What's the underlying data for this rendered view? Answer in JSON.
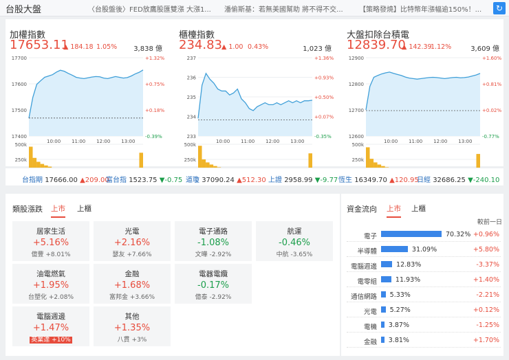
{
  "header": {
    "title": "台股大盤",
    "tickers": [
      "〈台股盤後〉FED放鷹股匯雙漲 大漲1...",
      "潘偷斯基：若無美國幫助 將不得不交...",
      "【策略發燒】比特幣年漲幅逾150%！..."
    ]
  },
  "indices": [
    {
      "name": "加權指數",
      "value": "17653.11",
      "change": "▲ 184.18",
      "change_pct": "1.05%",
      "volume": "3,838 億",
      "y_labels": [
        "17700",
        "17600",
        "17500",
        "17400"
      ],
      "pct_labels": [
        "+1.32%",
        "+0.75%",
        "+0.18%",
        "-0.39%"
      ],
      "vol_labels": [
        "500k",
        "250k",
        "0"
      ],
      "time_labels": [
        "10:00",
        "11:00",
        "12:00",
        "13:00"
      ],
      "ylim": [
        17400,
        17700
      ],
      "prev_close": 17468.93,
      "series": [
        17468,
        17548,
        17598,
        17612,
        17625,
        17630,
        17635,
        17645,
        17652,
        17648,
        17640,
        17633,
        17625,
        17622,
        17620,
        17623,
        17626,
        17628,
        17627,
        17622,
        17620,
        17624,
        17628,
        17625,
        17622,
        17624,
        17630,
        17638,
        17644,
        17653
      ],
      "volumes": [
        0.92,
        0.55,
        0.42,
        0.35,
        0.3,
        0.26,
        0.22,
        0.2,
        0.18,
        0.17,
        0.16,
        0.15,
        0.15,
        0.14,
        0.14,
        0.13,
        0.13,
        0.13,
        0.12,
        0.12,
        0.12,
        0.12,
        0.12,
        0.11,
        0.12,
        0.12,
        0.13,
        0.14,
        0.16,
        0.72
      ]
    },
    {
      "name": "櫃檯指數",
      "value": "234.83",
      "change": "▲ 1.00",
      "change_pct": "0.43%",
      "volume": "1,023 億",
      "y_labels": [
        "237",
        "236",
        "235",
        "234",
        "233"
      ],
      "pct_labels": [
        "+1.36%",
        "+0.93%",
        "+0.50%",
        "+0.07%",
        "-0.35%"
      ],
      "vol_labels": [
        "500k",
        "250k",
        "0"
      ],
      "time_labels": [
        "10:00",
        "11:00",
        "12:00",
        "13:00"
      ],
      "ylim": [
        233,
        237
      ],
      "prev_close": 233.83,
      "series": [
        233.9,
        235.6,
        236.2,
        235.9,
        235.7,
        235.4,
        235.3,
        235.3,
        235.1,
        235.2,
        235.4,
        234.9,
        234.7,
        234.4,
        234.3,
        234.5,
        234.6,
        234.7,
        234.6,
        234.6,
        234.7,
        234.6,
        234.7,
        234.8,
        234.7,
        234.8,
        234.7,
        234.8,
        234.8,
        234.83
      ],
      "volumes": [
        0.95,
        0.5,
        0.4,
        0.33,
        0.28,
        0.24,
        0.21,
        0.19,
        0.18,
        0.17,
        0.16,
        0.15,
        0.15,
        0.14,
        0.14,
        0.13,
        0.13,
        0.13,
        0.12,
        0.12,
        0.12,
        0.12,
        0.12,
        0.12,
        0.12,
        0.12,
        0.13,
        0.13,
        0.15,
        0.7
      ]
    },
    {
      "name": "大盤扣除台積電",
      "value": "12839.70",
      "change": "▲ 142.39",
      "change_pct": "1.12%",
      "volume": "3,609 億",
      "y_labels": [
        "12900",
        "12800",
        "12700",
        "12600"
      ],
      "pct_labels": [
        "+1.60%",
        "+0.81%",
        "+0.02%",
        "-0.77%"
      ],
      "vol_labels": [
        "500k",
        "250k",
        "0"
      ],
      "time_labels": [
        "10:00",
        "11:00",
        "12:00",
        "13:00"
      ],
      "ylim": [
        12600,
        12900
      ],
      "prev_close": 12697.31,
      "series": [
        12700,
        12790,
        12825,
        12832,
        12838,
        12842,
        12845,
        12840,
        12836,
        12832,
        12826,
        12822,
        12820,
        12818,
        12820,
        12822,
        12824,
        12825,
        12824,
        12822,
        12820,
        12822,
        12824,
        12825,
        12823,
        12824,
        12826,
        12830,
        12834,
        12839.7
      ],
      "volumes": [
        0.9,
        0.52,
        0.4,
        0.33,
        0.28,
        0.24,
        0.21,
        0.19,
        0.18,
        0.17,
        0.16,
        0.15,
        0.15,
        0.14,
        0.14,
        0.13,
        0.13,
        0.13,
        0.12,
        0.12,
        0.12,
        0.12,
        0.12,
        0.11,
        0.12,
        0.12,
        0.13,
        0.14,
        0.16,
        0.68
      ]
    }
  ],
  "global_strip": [
    {
      "name": "台指期",
      "value": "17666.00",
      "change": "▲209.00",
      "dir": "up"
    },
    {
      "name": "富台指",
      "value": "1523.75",
      "change": "▼-0.75",
      "dir": "dn"
    },
    {
      "name": "道瓊",
      "value": "37090.24",
      "change": "▲512.30",
      "dir": "up"
    },
    {
      "name": "上證",
      "value": "2958.99",
      "change": "▼-9.77",
      "dir": "dn"
    },
    {
      "name": "恆生",
      "value": "16349.70",
      "change": "▲120.95",
      "dir": "up"
    },
    {
      "name": "日經",
      "value": "32686.25",
      "change": "▼-240.10",
      "dir": "dn"
    }
  ],
  "sectors": {
    "title": "類股漲跌",
    "tabs": [
      "上市",
      "上櫃"
    ],
    "cards": [
      {
        "name": "居家生活",
        "pct": "+5.16%",
        "stock": "億豐",
        "stock_pct": "+8.01%",
        "dir": "up",
        "badge": false
      },
      {
        "name": "光電",
        "pct": "+2.16%",
        "stock": "瑟友",
        "stock_pct": "+7.66%",
        "dir": "up",
        "badge": false
      },
      {
        "name": "電子通路",
        "pct": "-1.08%",
        "stock": "文曄",
        "stock_pct": "-2.92%",
        "dir": "dn",
        "badge": false
      },
      {
        "name": "航運",
        "pct": "-0.46%",
        "stock": "中航",
        "stock_pct": "-3.65%",
        "dir": "dn",
        "badge": false
      },
      {
        "name": "油電燃氣",
        "pct": "+1.95%",
        "stock": "台塑化",
        "stock_pct": "+2.08%",
        "dir": "up",
        "badge": false
      },
      {
        "name": "金融",
        "pct": "+1.68%",
        "stock": "富邦金",
        "stock_pct": "+3.66%",
        "dir": "up",
        "badge": false
      },
      {
        "name": "電器電纜",
        "pct": "-0.17%",
        "stock": "億泰",
        "stock_pct": "-2.92%",
        "dir": "dn",
        "badge": false
      },
      {
        "name": "電腦週邊",
        "pct": "+1.47%",
        "stock": "英業達",
        "stock_pct": "+10%",
        "dir": "up",
        "badge": true
      },
      {
        "name": "其他",
        "pct": "+1.35%",
        "stock": "八貫",
        "stock_pct": "+3%",
        "dir": "up",
        "badge": false
      }
    ]
  },
  "fund_flow": {
    "title": "資金流向",
    "tabs": [
      "上市",
      "上櫃"
    ],
    "header_right": "較前一日",
    "rows": [
      {
        "label": "電子",
        "share": 70.32,
        "share_text": "70.32%",
        "diff": "+0.96%",
        "dir": "up"
      },
      {
        "label": "半導體",
        "share": 31.09,
        "share_text": "31.09%",
        "diff": "+5.80%",
        "dir": "up"
      },
      {
        "label": "電腦週邊",
        "share": 12.83,
        "share_text": "12.83%",
        "diff": "-3.37%",
        "dir": "dn"
      },
      {
        "label": "電零組",
        "share": 11.93,
        "share_text": "11.93%",
        "diff": "+1.40%",
        "dir": "up"
      },
      {
        "label": "通信網路",
        "share": 5.33,
        "share_text": "5.33%",
        "diff": "-2.21%",
        "dir": "dn"
      },
      {
        "label": "光電",
        "share": 5.27,
        "share_text": "5.27%",
        "diff": "+0.12%",
        "dir": "up"
      },
      {
        "label": "電機",
        "share": 3.87,
        "share_text": "3.87%",
        "diff": "-1.25%",
        "dir": "dn"
      },
      {
        "label": "金融",
        "share": 3.81,
        "share_text": "3.81%",
        "diff": "+1.70%",
        "dir": "up"
      }
    ]
  },
  "colors": {
    "up": "#e74c3c",
    "down": "#1c9e4b",
    "line": "#3f9fd8",
    "fill": "#dceffb",
    "volume": "#f0b429",
    "bar": "#3a86e8",
    "link": "#2a6fbd"
  }
}
